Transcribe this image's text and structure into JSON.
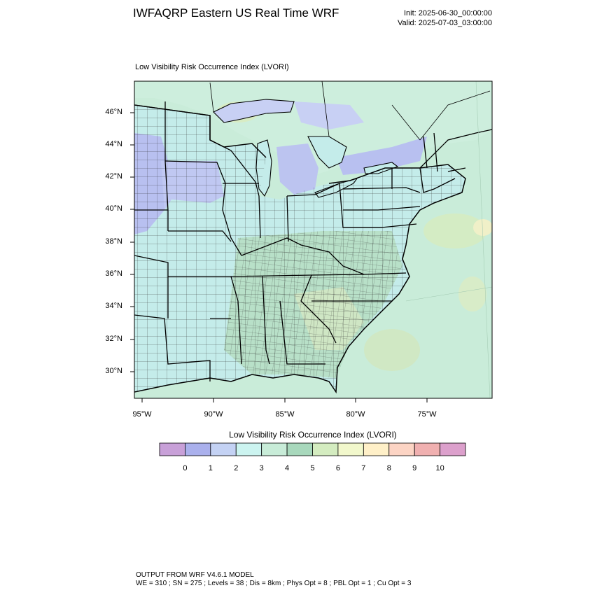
{
  "header": {
    "title": "IWFAQRP Eastern US Real Time WRF",
    "init": "Init: 2025-06-30_00:00:00",
    "valid": "Valid: 2025-07-03_03:00:00"
  },
  "map": {
    "field_title": "Low Visibility Risk Occurrence Index   (LVORI)",
    "lat_labels": [
      "46°N",
      "44°N",
      "42°N",
      "40°N",
      "38°N",
      "36°N",
      "34°N",
      "32°N",
      "30°N"
    ],
    "lon_labels": [
      "95°W",
      "90°W",
      "85°W",
      "80°W",
      "75°W"
    ]
  },
  "legend": {
    "title": "Low Visibility Risk Occurrence Index  (LVORI)",
    "labels": [
      "0",
      "1",
      "2",
      "3",
      "4",
      "5",
      "6",
      "7",
      "8",
      "9",
      "10"
    ],
    "colors": [
      "#c8a0d8",
      "#aab0ec",
      "#c4d2f4",
      "#ccf4f0",
      "#c8ecd8",
      "#a8d8bc",
      "#d4ecc0",
      "#f2f8cc",
      "#fff0c8",
      "#fcd4c4",
      "#f0b0b0",
      "#dca0cc"
    ]
  },
  "footer": {
    "line1": "OUTPUT FROM WRF V4.6.1 MODEL",
    "line2": "WE = 310 ; SN = 275 ; Levels = 38 ; Dis = 8km ; Phys Opt = 8 ; PBL Opt = 1 ; Cu Opt = 3"
  }
}
